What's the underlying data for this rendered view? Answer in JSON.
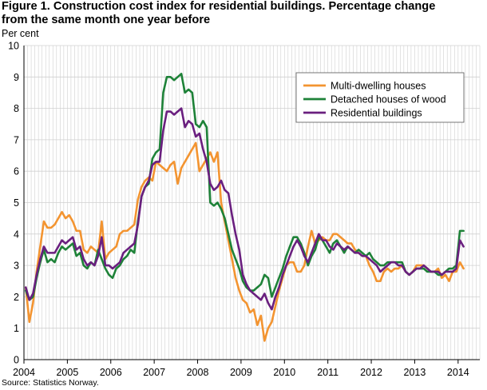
{
  "title": {
    "line1": "Figure 1. Construction cost index for residential buildings. Percentage change",
    "line2": "from the same month one year before"
  },
  "ylabel": "Per cent",
  "source": "Source: Statistics Norway.",
  "colors": {
    "multi": "#f39430",
    "detached": "#1e8238",
    "residential": "#6a1f7f",
    "grid": "#d0d0d0"
  },
  "chart_data": {
    "type": "line",
    "title": "Figure 1. Construction cost index for residential buildings. Percentage change from the same month one year before",
    "xlabel": "",
    "ylabel": "Per cent",
    "ylim": [
      0,
      10
    ],
    "yticks": [
      "0",
      "1",
      "2",
      "3",
      "4",
      "5",
      "6",
      "7",
      "8",
      "9",
      "10"
    ],
    "year_labels": [
      "2004",
      "2005",
      "2006",
      "2007",
      "2008",
      "2009",
      "2010",
      "2011",
      "2012",
      "2013",
      "2014"
    ],
    "x_start": "2004-01",
    "frequency": "monthly",
    "grid": true,
    "legend_position": "top-right",
    "series": [
      {
        "name": "Multi-dwelling houses",
        "color": "#f39430",
        "values": [
          2.3,
          1.2,
          1.8,
          2.8,
          3.6,
          4.4,
          4.2,
          4.2,
          4.3,
          4.5,
          4.7,
          4.5,
          4.6,
          4.4,
          4.1,
          4.1,
          3.5,
          3.4,
          3.6,
          3.5,
          3.4,
          4.4,
          3.2,
          3.4,
          3.5,
          3.6,
          4.0,
          4.1,
          4.1,
          4.2,
          4.3,
          5.1,
          5.5,
          5.7,
          5.8,
          5.7,
          6.3,
          6.2,
          6.1,
          6.0,
          6.2,
          6.3,
          5.6,
          6.1,
          6.3,
          6.5,
          6.7,
          6.9,
          6.0,
          6.2,
          6.4,
          6.6,
          6.3,
          6.6,
          5.0,
          4.4,
          3.8,
          3.2,
          2.6,
          2.2,
          1.9,
          1.8,
          1.5,
          1.6,
          1.1,
          1.4,
          0.6,
          1.0,
          1.2,
          1.7,
          2.2,
          2.6,
          3.0,
          3.1,
          3.1,
          2.8,
          2.8,
          3.0,
          3.6,
          4.1,
          3.7,
          3.8,
          3.9,
          3.8,
          3.8,
          4.0,
          4.0,
          3.9,
          3.8,
          3.7,
          3.7,
          3.5,
          3.4,
          3.3,
          3.3,
          3.0,
          2.8,
          2.5,
          2.5,
          2.8,
          2.9,
          2.8,
          2.9,
          2.9,
          3.0,
          2.8,
          2.7,
          2.8,
          3.0,
          3.0,
          3.0,
          2.9,
          2.8,
          2.8,
          2.9,
          2.6,
          2.7,
          2.5,
          2.8,
          2.8,
          3.1,
          2.9
        ],
        "x": [
          "2004-01",
          "2004-02",
          "2004-03",
          "2004-04",
          "2004-05",
          "2004-06",
          "2004-07",
          "2004-08",
          "2004-09",
          "2004-10",
          "2004-11",
          "2004-12",
          "2005-01",
          "2005-02",
          "2005-03",
          "2005-04",
          "2005-05",
          "2005-06",
          "2005-07",
          "2005-08",
          "2005-09",
          "2005-10",
          "2005-11",
          "2005-12",
          "2006-01",
          "2006-02",
          "2006-03",
          "2006-04",
          "2006-05",
          "2006-06",
          "2006-07",
          "2006-08",
          "2006-09",
          "2006-10",
          "2006-11",
          "2006-12",
          "2007-01",
          "2007-02",
          "2007-03",
          "2007-04",
          "2007-05",
          "2007-06",
          "2007-07",
          "2007-08",
          "2007-09",
          "2007-10",
          "2007-11",
          "2007-12",
          "2008-01",
          "2008-02",
          "2008-03",
          "2008-04",
          "2008-05",
          "2008-06",
          "2008-07",
          "2008-08",
          "2008-09",
          "2008-10",
          "2008-11",
          "2008-12",
          "2009-01",
          "2009-02",
          "2009-03",
          "2009-04",
          "2009-05",
          "2009-06",
          "2009-07",
          "2009-08",
          "2009-09",
          "2009-10",
          "2009-11",
          "2009-12",
          "2010-01",
          "2010-02",
          "2010-03",
          "2010-04",
          "2010-05",
          "2010-06",
          "2010-07",
          "2010-08",
          "2010-09",
          "2010-10",
          "2010-11",
          "2010-12",
          "2011-01",
          "2011-02",
          "2011-03",
          "2011-04",
          "2011-05",
          "2011-06",
          "2011-07",
          "2011-08",
          "2011-09",
          "2011-10",
          "2011-11",
          "2011-12",
          "2012-01",
          "2012-02",
          "2012-03",
          "2012-04",
          "2012-05",
          "2012-06",
          "2012-07",
          "2012-08",
          "2012-09",
          "2012-10",
          "2012-11",
          "2012-12",
          "2013-01",
          "2013-02",
          "2013-03",
          "2013-04",
          "2013-05",
          "2013-06",
          "2013-07",
          "2013-08",
          "2013-09",
          "2013-10",
          "2013-11",
          "2013-12",
          "2014-01",
          "2014-02"
        ]
      },
      {
        "name": "Detached houses of wood",
        "color": "#1e8238",
        "values": [
          2.2,
          1.9,
          2.0,
          2.6,
          3.1,
          3.5,
          3.1,
          3.2,
          3.1,
          3.4,
          3.6,
          3.5,
          3.6,
          3.7,
          3.3,
          3.4,
          3.0,
          2.9,
          3.1,
          3.0,
          3.5,
          3.2,
          2.9,
          2.7,
          2.6,
          2.9,
          3.0,
          3.2,
          3.3,
          3.5,
          3.4,
          4.4,
          5.2,
          5.5,
          5.6,
          6.4,
          6.6,
          6.7,
          8.5,
          9.0,
          9.0,
          8.9,
          9.0,
          9.1,
          8.5,
          8.6,
          8.5,
          7.5,
          7.4,
          7.6,
          7.4,
          5.0,
          4.9,
          5.0,
          4.8,
          4.5,
          4.0,
          3.5,
          3.2,
          2.9,
          2.5,
          2.3,
          2.2,
          2.2,
          2.3,
          2.4,
          2.7,
          2.6,
          2.0,
          2.3,
          2.6,
          2.9,
          3.3,
          3.6,
          3.9,
          3.9,
          3.7,
          3.4,
          3.0,
          3.3,
          3.5,
          3.9,
          3.8,
          3.6,
          3.4,
          3.7,
          3.8,
          3.6,
          3.4,
          3.6,
          3.5,
          3.4,
          3.5,
          3.4,
          3.3,
          3.4,
          3.2,
          3.1,
          3.0,
          3.0,
          3.1,
          3.1,
          3.1,
          3.1,
          3.1,
          2.8,
          2.7,
          2.8,
          2.9,
          2.9,
          2.9,
          2.8,
          2.8,
          2.8,
          2.7,
          2.7,
          2.8,
          2.9,
          2.9,
          3.0,
          4.1,
          4.1
        ],
        "x": [
          "2004-01",
          "2004-02",
          "2004-03",
          "2004-04",
          "2004-05",
          "2004-06",
          "2004-07",
          "2004-08",
          "2004-09",
          "2004-10",
          "2004-11",
          "2004-12",
          "2005-01",
          "2005-02",
          "2005-03",
          "2005-04",
          "2005-05",
          "2005-06",
          "2005-07",
          "2005-08",
          "2005-09",
          "2005-10",
          "2005-11",
          "2005-12",
          "2006-01",
          "2006-02",
          "2006-03",
          "2006-04",
          "2006-05",
          "2006-06",
          "2006-07",
          "2006-08",
          "2006-09",
          "2006-10",
          "2006-11",
          "2006-12",
          "2007-01",
          "2007-02",
          "2007-03",
          "2007-04",
          "2007-05",
          "2007-06",
          "2007-07",
          "2007-08",
          "2007-09",
          "2007-10",
          "2007-11",
          "2007-12",
          "2008-01",
          "2008-02",
          "2008-03",
          "2008-04",
          "2008-05",
          "2008-06",
          "2008-07",
          "2008-08",
          "2008-09",
          "2008-10",
          "2008-11",
          "2008-12",
          "2009-01",
          "2009-02",
          "2009-03",
          "2009-04",
          "2009-05",
          "2009-06",
          "2009-07",
          "2009-08",
          "2009-09",
          "2009-10",
          "2009-11",
          "2009-12",
          "2010-01",
          "2010-02",
          "2010-03",
          "2010-04",
          "2010-05",
          "2010-06",
          "2010-07",
          "2010-08",
          "2010-09",
          "2010-10",
          "2010-11",
          "2010-12",
          "2011-01",
          "2011-02",
          "2011-03",
          "2011-04",
          "2011-05",
          "2011-06",
          "2011-07",
          "2011-08",
          "2011-09",
          "2011-10",
          "2011-11",
          "2011-12",
          "2012-01",
          "2012-02",
          "2012-03",
          "2012-04",
          "2012-05",
          "2012-06",
          "2012-07",
          "2012-08",
          "2012-09",
          "2012-10",
          "2012-11",
          "2012-12",
          "2013-01",
          "2013-02",
          "2013-03",
          "2013-04",
          "2013-05",
          "2013-06",
          "2013-07",
          "2013-08",
          "2013-09",
          "2013-10",
          "2013-11",
          "2013-12",
          "2014-01",
          "2014-02"
        ]
      },
      {
        "name": "Residential buildings",
        "color": "#6a1f7f",
        "values": [
          2.3,
          1.9,
          2.1,
          2.7,
          3.2,
          3.6,
          3.4,
          3.4,
          3.4,
          3.6,
          3.8,
          3.7,
          3.8,
          3.9,
          3.5,
          3.6,
          3.2,
          3.0,
          3.1,
          3.0,
          3.3,
          3.9,
          3.0,
          3.0,
          2.9,
          3.0,
          3.1,
          3.4,
          3.5,
          3.6,
          3.7,
          4.3,
          5.2,
          5.5,
          5.7,
          6.2,
          6.3,
          6.3,
          7.3,
          7.9,
          7.9,
          7.8,
          7.9,
          8.0,
          7.4,
          7.6,
          7.5,
          7.1,
          7.2,
          6.7,
          6.3,
          5.6,
          5.4,
          5.5,
          5.7,
          5.4,
          5.3,
          4.6,
          4.0,
          3.5,
          2.7,
          2.4,
          2.2,
          2.1,
          2.0,
          1.9,
          2.1,
          1.8,
          1.6,
          2.0,
          2.3,
          2.7,
          3.0,
          3.3,
          3.6,
          3.8,
          3.6,
          3.3,
          3.1,
          3.4,
          3.7,
          4.0,
          3.8,
          3.8,
          3.6,
          3.5,
          3.7,
          3.6,
          3.5,
          3.6,
          3.5,
          3.4,
          3.4,
          3.3,
          3.3,
          3.2,
          3.1,
          3.0,
          2.8,
          2.9,
          3.0,
          3.1,
          3.1,
          3.0,
          3.0,
          2.8,
          2.7,
          2.8,
          2.9,
          2.9,
          3.0,
          2.9,
          2.8,
          2.8,
          2.8,
          2.7,
          2.8,
          2.8,
          2.8,
          2.9,
          3.8,
          3.6
        ],
        "x": [
          "2004-01",
          "2004-02",
          "2004-03",
          "2004-04",
          "2004-05",
          "2004-06",
          "2004-07",
          "2004-08",
          "2004-09",
          "2004-10",
          "2004-11",
          "2004-12",
          "2005-01",
          "2005-02",
          "2005-03",
          "2005-04",
          "2005-05",
          "2005-06",
          "2005-07",
          "2005-08",
          "2005-09",
          "2005-10",
          "2005-11",
          "2005-12",
          "2006-01",
          "2006-02",
          "2006-03",
          "2006-04",
          "2006-05",
          "2006-06",
          "2006-07",
          "2006-08",
          "2006-09",
          "2006-10",
          "2006-11",
          "2006-12",
          "2007-01",
          "2007-02",
          "2007-03",
          "2007-04",
          "2007-05",
          "2007-06",
          "2007-07",
          "2007-08",
          "2007-09",
          "2007-10",
          "2007-11",
          "2007-12",
          "2008-01",
          "2008-02",
          "2008-03",
          "2008-04",
          "2008-05",
          "2008-06",
          "2008-07",
          "2008-08",
          "2008-09",
          "2008-10",
          "2008-11",
          "2008-12",
          "2009-01",
          "2009-02",
          "2009-03",
          "2009-04",
          "2009-05",
          "2009-06",
          "2009-07",
          "2009-08",
          "2009-09",
          "2009-10",
          "2009-11",
          "2009-12",
          "2010-01",
          "2010-02",
          "2010-03",
          "2010-04",
          "2010-05",
          "2010-06",
          "2010-07",
          "2010-08",
          "2010-09",
          "2010-10",
          "2010-11",
          "2010-12",
          "2011-01",
          "2011-02",
          "2011-03",
          "2011-04",
          "2011-05",
          "2011-06",
          "2011-07",
          "2011-08",
          "2011-09",
          "2011-10",
          "2011-11",
          "2011-12",
          "2012-01",
          "2012-02",
          "2012-03",
          "2012-04",
          "2012-05",
          "2012-06",
          "2012-07",
          "2012-08",
          "2012-09",
          "2012-10",
          "2012-11",
          "2012-12",
          "2013-01",
          "2013-02",
          "2013-03",
          "2013-04",
          "2013-05",
          "2013-06",
          "2013-07",
          "2013-08",
          "2013-09",
          "2013-10",
          "2013-11",
          "2013-12",
          "2014-01",
          "2014-02"
        ]
      }
    ]
  }
}
